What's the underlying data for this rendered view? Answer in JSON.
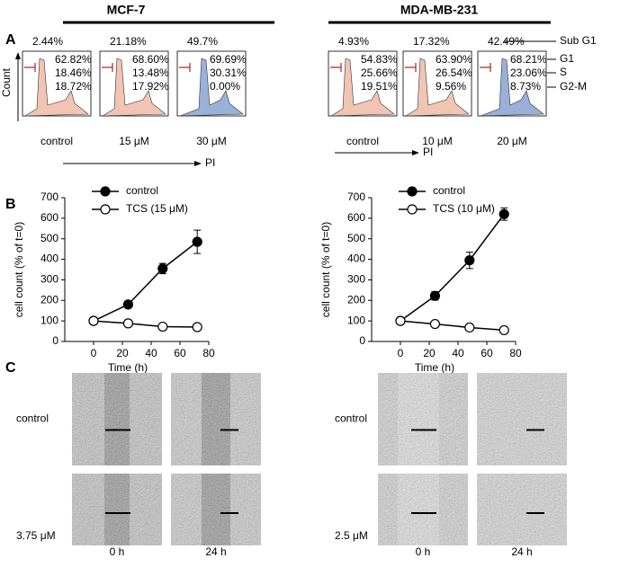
{
  "headers": [
    "MCF-7",
    "MDA-MB-231"
  ],
  "panel_labels": [
    "A",
    "B",
    "C"
  ],
  "flow": {
    "y_axis": "Count",
    "x_axis": [
      "PI",
      "PI"
    ],
    "phase_labels": [
      "Sub G1",
      "G1",
      "S",
      "G2-M"
    ],
    "samples": [
      {
        "label": "control",
        "values": [
          "2.44%",
          "62.82%",
          "18.46%",
          "18.72%"
        ]
      },
      {
        "label": "15 μM",
        "values": [
          "21.18%",
          "68.60%",
          "13.48%",
          "17.92%"
        ]
      },
      {
        "label": "30 μM",
        "values": [
          "49.7%",
          "69.69%",
          "30.31%",
          "0.00%"
        ]
      },
      {
        "label": "control",
        "values": [
          "4.93%",
          "54.83%",
          "25.66%",
          "19.51%"
        ]
      },
      {
        "label": "10 μM",
        "values": [
          "17.32%",
          "63.90%",
          "26.54%",
          "9.56%"
        ]
      },
      {
        "label": "20 μM",
        "values": [
          "42.49%",
          "68.21%",
          "23.06%",
          "8.73%"
        ]
      }
    ]
  },
  "chart_data": [
    {
      "type": "line",
      "x_label": "Time (h)",
      "y_label": "cell count (% of t=0)",
      "x": [
        0,
        24,
        48,
        72
      ],
      "series": [
        {
          "name": "control",
          "color": "#000000",
          "marker_fill": "#000000",
          "values": [
            100,
            180,
            355,
            485
          ],
          "errors": [
            8,
            15,
            25,
            57
          ]
        },
        {
          "name": "TCS (15 μM)",
          "color": "#000000",
          "marker_fill": "#ffffff",
          "values": [
            100,
            88,
            72,
            70
          ],
          "errors": [
            5,
            5,
            5,
            12
          ]
        }
      ],
      "xlim": [
        -20,
        80
      ],
      "xticks": [
        0,
        20,
        40,
        60,
        80
      ],
      "ylim": [
        0,
        700
      ],
      "yticks": [
        0,
        100,
        200,
        300,
        400,
        500,
        600,
        700
      ],
      "grid": false,
      "legend": "upper left"
    },
    {
      "type": "line",
      "x_label": "Time (h)",
      "y_label": "cell count (% of t=0)",
      "x": [
        0,
        24,
        48,
        72
      ],
      "series": [
        {
          "name": "control",
          "color": "#000000",
          "marker_fill": "#000000",
          "values": [
            100,
            222,
            395,
            620
          ],
          "errors": [
            8,
            20,
            40,
            30
          ]
        },
        {
          "name": "TCS (10 μM)",
          "color": "#000000",
          "marker_fill": "#ffffff",
          "values": [
            100,
            85,
            68,
            55
          ],
          "errors": [
            5,
            5,
            5,
            12
          ]
        }
      ],
      "xlim": [
        -20,
        80
      ],
      "xticks": [
        0,
        20,
        40,
        60,
        80
      ],
      "ylim": [
        0,
        700
      ],
      "yticks": [
        0,
        100,
        200,
        300,
        400,
        500,
        600,
        700
      ],
      "grid": false,
      "legend": "upper left"
    }
  ],
  "wound": {
    "row_labels": [
      [
        "control",
        "3.75 μM"
      ],
      [
        "control",
        "2.5 μM"
      ]
    ],
    "time_labels": [
      [
        "0 h",
        "24 h"
      ],
      [
        "0 h",
        "24 h"
      ]
    ]
  }
}
